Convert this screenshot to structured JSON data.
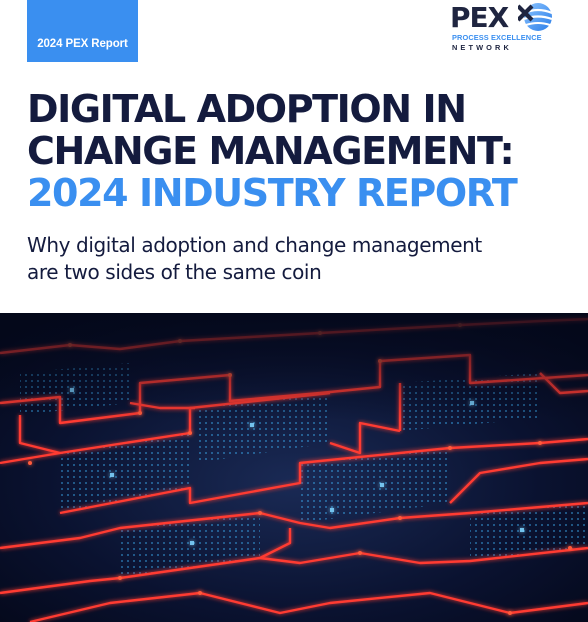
{
  "badge": {
    "label": "2024 PEX Report"
  },
  "logo": {
    "brand": "PEX",
    "tagline_top": "PROCESS EXCELLENCE",
    "tagline_bottom": "NETWORK",
    "icon": "globe-icon",
    "colors": {
      "navy": "#1f2540",
      "blue": "#3a8ff0"
    }
  },
  "title": {
    "line1": "DIGITAL ADOPTION IN",
    "line2": "CHANGE MANAGEMENT:",
    "line3": "2024 INDUSTRY REPORT"
  },
  "subtitle": {
    "line1": "Why digital adoption and change management",
    "line2": "are two sides of the same coin"
  },
  "hero_image": {
    "subject": "glowing-circuit-maze",
    "colors": {
      "background": "#050a1c",
      "glow_red": "#ff3b30",
      "glow_blue": "#3fb8ff"
    }
  }
}
